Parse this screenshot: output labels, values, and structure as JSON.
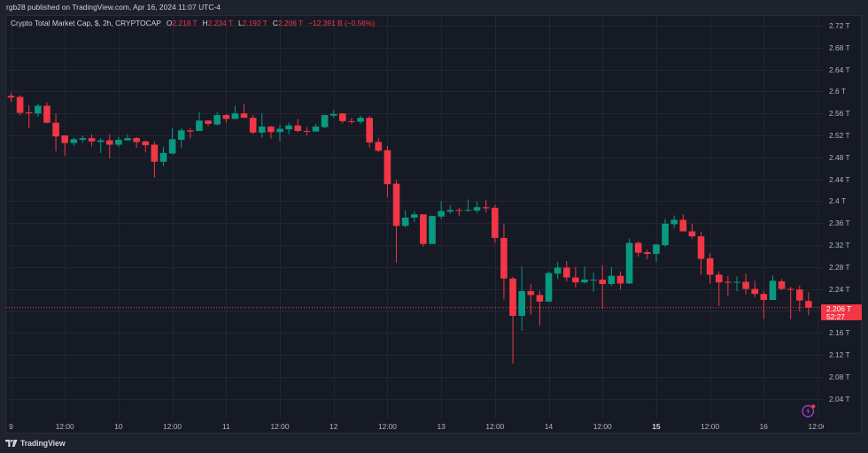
{
  "header": {
    "published_text": "rgb28 published on TradingView.com, Apr 16, 2024 11:07 UTC-4"
  },
  "legend": {
    "symbol": "Crypto Total Market Cap, $, 2h, CRYPTOCAP",
    "open_label": "O",
    "open": "2.218 T",
    "high_label": "H",
    "high": "2.234 T",
    "low_label": "L",
    "low": "2.192 T",
    "close_label": "C",
    "close": "2.206 T",
    "change": "−12.391 B (−0.56%)"
  },
  "price_tag": {
    "price": "2.206 T",
    "countdown": "52:27"
  },
  "footer": {
    "brand": "TradingView"
  },
  "icons": {
    "alert": "lightning-icon"
  },
  "colors": {
    "up": "#089981",
    "down": "#f23645",
    "grid": "#222633",
    "last_price_line": "#f23645",
    "icon_purple": "#9b3fc8",
    "icon_dot": "#f23645"
  },
  "chart_data": {
    "type": "candlestick",
    "title": "Crypto Total Market Cap, $, 2h, CRYPTOCAP",
    "interval": "2h",
    "unit": "T (trillion USD)",
    "xlabel": "",
    "ylabel": "",
    "ylim": [
      2.01,
      2.74
    ],
    "grid": true,
    "legend_position": "top-left",
    "last_price": 2.206,
    "last_change": "−12.391 B (−0.56%)",
    "y_ticks": [
      {
        "value": 2.72,
        "label": "2.72 T"
      },
      {
        "value": 2.68,
        "label": "2.68 T"
      },
      {
        "value": 2.64,
        "label": "2.64 T"
      },
      {
        "value": 2.6,
        "label": "2.6 T"
      },
      {
        "value": 2.56,
        "label": "2.56 T"
      },
      {
        "value": 2.52,
        "label": "2.52 T"
      },
      {
        "value": 2.48,
        "label": "2.48 T"
      },
      {
        "value": 2.44,
        "label": "2.44 T"
      },
      {
        "value": 2.4,
        "label": "2.4 T"
      },
      {
        "value": 2.36,
        "label": "2.36 T"
      },
      {
        "value": 2.32,
        "label": "2.32 T"
      },
      {
        "value": 2.28,
        "label": "2.28 T"
      },
      {
        "value": 2.24,
        "label": "2.24 T"
      },
      {
        "value": 2.2,
        "label": ""
      },
      {
        "value": 2.16,
        "label": "2.16 T"
      },
      {
        "value": 2.12,
        "label": "2.12 T"
      },
      {
        "value": 2.08,
        "label": "2.08 T"
      },
      {
        "value": 2.04,
        "label": "2.04 T"
      }
    ],
    "x_ticks": [
      {
        "index": 0,
        "label": "9"
      },
      {
        "index": 6,
        "label": "12:00"
      },
      {
        "index": 12,
        "label": "10"
      },
      {
        "index": 18,
        "label": "12:00"
      },
      {
        "index": 24,
        "label": "11"
      },
      {
        "index": 30,
        "label": "12:00"
      },
      {
        "index": 36,
        "label": "12"
      },
      {
        "index": 42,
        "label": "12:00"
      },
      {
        "index": 48,
        "label": "13"
      },
      {
        "index": 54,
        "label": "12:00"
      },
      {
        "index": 60,
        "label": "14"
      },
      {
        "index": 66,
        "label": "12:00"
      },
      {
        "index": 72,
        "label": "15",
        "bold": true
      },
      {
        "index": 78,
        "label": "12:00"
      },
      {
        "index": 84,
        "label": "16"
      },
      {
        "index": 90,
        "label": "12:00"
      }
    ],
    "columns": [
      "open",
      "high",
      "low",
      "close"
    ],
    "ohlc": [
      [
        2.592,
        2.597,
        2.581,
        2.589
      ],
      [
        2.59,
        2.593,
        2.557,
        2.561
      ],
      [
        2.562,
        2.575,
        2.533,
        2.561
      ],
      [
        2.56,
        2.578,
        2.554,
        2.574
      ],
      [
        2.574,
        2.58,
        2.542,
        2.543
      ],
      [
        2.543,
        2.56,
        2.491,
        2.518
      ],
      [
        2.52,
        2.52,
        2.483,
        2.506
      ],
      [
        2.506,
        2.516,
        2.501,
        2.513
      ],
      [
        2.512,
        2.52,
        2.507,
        2.515
      ],
      [
        2.515,
        2.522,
        2.5,
        2.509
      ],
      [
        2.508,
        2.515,
        2.488,
        2.511
      ],
      [
        2.511,
        2.522,
        2.478,
        2.503
      ],
      [
        2.503,
        2.517,
        2.499,
        2.512
      ],
      [
        2.511,
        2.522,
        2.51,
        2.515
      ],
      [
        2.515,
        2.517,
        2.497,
        2.508
      ],
      [
        2.509,
        2.511,
        2.489,
        2.502
      ],
      [
        2.503,
        2.508,
        2.443,
        2.472
      ],
      [
        2.472,
        2.499,
        2.464,
        2.488
      ],
      [
        2.487,
        2.533,
        2.485,
        2.513
      ],
      [
        2.512,
        2.533,
        2.497,
        2.529
      ],
      [
        2.529,
        2.533,
        2.514,
        2.527
      ],
      [
        2.528,
        2.562,
        2.528,
        2.547
      ],
      [
        2.547,
        2.547,
        2.537,
        2.541
      ],
      [
        2.54,
        2.562,
        2.538,
        2.557
      ],
      [
        2.557,
        2.559,
        2.543,
        2.55
      ],
      [
        2.55,
        2.574,
        2.55,
        2.56
      ],
      [
        2.56,
        2.577,
        2.552,
        2.552
      ],
      [
        2.552,
        2.557,
        2.522,
        2.525
      ],
      [
        2.525,
        2.56,
        2.516,
        2.536
      ],
      [
        2.536,
        2.537,
        2.514,
        2.526
      ],
      [
        2.526,
        2.539,
        2.509,
        2.532
      ],
      [
        2.531,
        2.543,
        2.522,
        2.538
      ],
      [
        2.538,
        2.55,
        2.526,
        2.528
      ],
      [
        2.528,
        2.535,
        2.52,
        2.527
      ],
      [
        2.527,
        2.541,
        2.527,
        2.536
      ],
      [
        2.535,
        2.557,
        2.533,
        2.557
      ],
      [
        2.556,
        2.566,
        2.552,
        2.559
      ],
      [
        2.56,
        2.56,
        2.542,
        2.546
      ],
      [
        2.546,
        2.552,
        2.541,
        2.545
      ],
      [
        2.545,
        2.556,
        2.541,
        2.552
      ],
      [
        2.552,
        2.555,
        2.498,
        2.507
      ],
      [
        2.508,
        2.515,
        2.489,
        2.492
      ],
      [
        2.493,
        2.501,
        2.407,
        2.431
      ],
      [
        2.432,
        2.439,
        2.288,
        2.355
      ],
      [
        2.355,
        2.383,
        2.352,
        2.37
      ],
      [
        2.37,
        2.382,
        2.362,
        2.376
      ],
      [
        2.376,
        2.376,
        2.317,
        2.322
      ],
      [
        2.322,
        2.373,
        2.322,
        2.373
      ],
      [
        2.372,
        2.4,
        2.367,
        2.382
      ],
      [
        2.381,
        2.393,
        2.377,
        2.384
      ],
      [
        2.384,
        2.388,
        2.373,
        2.383
      ],
      [
        2.383,
        2.403,
        2.381,
        2.384
      ],
      [
        2.383,
        2.4,
        2.379,
        2.389
      ],
      [
        2.389,
        2.402,
        2.379,
        2.387
      ],
      [
        2.388,
        2.393,
        2.324,
        2.333
      ],
      [
        2.333,
        2.358,
        2.221,
        2.259
      ],
      [
        2.259,
        2.262,
        2.104,
        2.191
      ],
      [
        2.191,
        2.281,
        2.164,
        2.236
      ],
      [
        2.236,
        2.249,
        2.193,
        2.229
      ],
      [
        2.229,
        2.237,
        2.173,
        2.217
      ],
      [
        2.217,
        2.272,
        2.217,
        2.269
      ],
      [
        2.268,
        2.289,
        2.258,
        2.279
      ],
      [
        2.279,
        2.291,
        2.254,
        2.261
      ],
      [
        2.261,
        2.28,
        2.243,
        2.252
      ],
      [
        2.252,
        2.281,
        2.25,
        2.257
      ],
      [
        2.256,
        2.27,
        2.235,
        2.257
      ],
      [
        2.257,
        2.283,
        2.204,
        2.249
      ],
      [
        2.249,
        2.28,
        2.245,
        2.264
      ],
      [
        2.264,
        2.272,
        2.239,
        2.25
      ],
      [
        2.25,
        2.332,
        2.249,
        2.324
      ],
      [
        2.324,
        2.327,
        2.299,
        2.306
      ],
      [
        2.307,
        2.312,
        2.294,
        2.304
      ],
      [
        2.304,
        2.322,
        2.289,
        2.321
      ],
      [
        2.32,
        2.368,
        2.317,
        2.359
      ],
      [
        2.358,
        2.374,
        2.351,
        2.366
      ],
      [
        2.366,
        2.376,
        2.345,
        2.345
      ],
      [
        2.345,
        2.359,
        2.332,
        2.336
      ],
      [
        2.336,
        2.344,
        2.266,
        2.295
      ],
      [
        2.296,
        2.305,
        2.25,
        2.266
      ],
      [
        2.266,
        2.272,
        2.209,
        2.252
      ],
      [
        2.253,
        2.264,
        2.228,
        2.252
      ],
      [
        2.252,
        2.263,
        2.236,
        2.253
      ],
      [
        2.253,
        2.268,
        2.23,
        2.24
      ],
      [
        2.24,
        2.255,
        2.225,
        2.231
      ],
      [
        2.231,
        2.236,
        2.185,
        2.22
      ],
      [
        2.22,
        2.265,
        2.22,
        2.255
      ],
      [
        2.254,
        2.258,
        2.238,
        2.24
      ],
      [
        2.24,
        2.244,
        2.185,
        2.239
      ],
      [
        2.239,
        2.246,
        2.199,
        2.219
      ],
      [
        2.218,
        2.234,
        2.192,
        2.206
      ]
    ]
  }
}
